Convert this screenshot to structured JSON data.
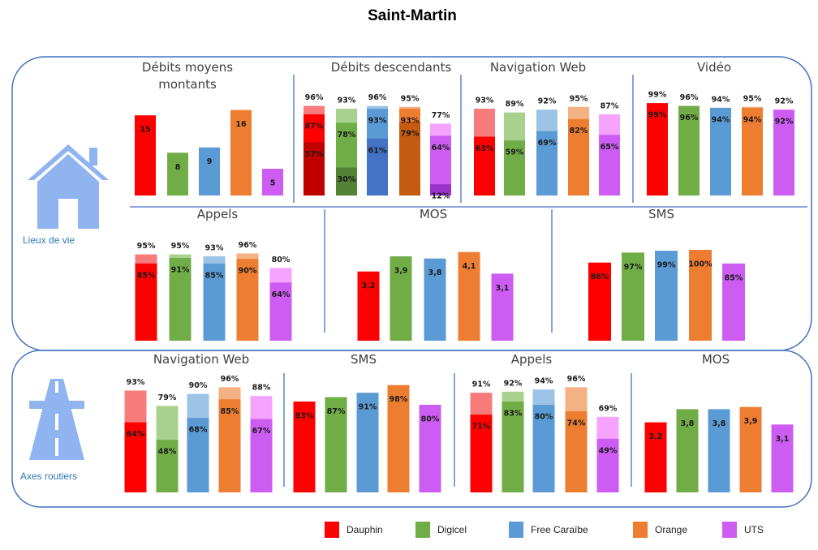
{
  "title": "Saint-Martin",
  "operators": [
    {
      "name": "Dauphin",
      "colors": [
        "#f77b7b",
        "#ff0000",
        "#c00000"
      ]
    },
    {
      "name": "Digicel",
      "colors": [
        "#a9d18e",
        "#70ad47",
        "#548235"
      ]
    },
    {
      "name": "Free Caraïbe",
      "colors": [
        "#9dc3e6",
        "#5b9bd5",
        "#4472c4"
      ]
    },
    {
      "name": "Orange",
      "colors": [
        "#f4b183",
        "#ed7d31",
        "#c55a11"
      ]
    },
    {
      "name": "UTS",
      "colors": [
        "#f5a3ff",
        "#cc5cf2",
        "#9933cc"
      ]
    }
  ],
  "sections": [
    {
      "label": "Lieux de vie",
      "charts": [
        {
          "type": "bar",
          "title": "Débits moyens montants",
          "ylim": [
            0,
            17
          ],
          "values": [
            15,
            8,
            9,
            16,
            5
          ]
        },
        {
          "type": "layered",
          "title": "Débits descendants",
          "ylim": [
            0,
            100
          ],
          "values": [
            [
              96,
              87,
              57
            ],
            [
              93,
              78,
              30
            ],
            [
              96,
              93,
              61
            ],
            [
              95,
              93,
              79
            ],
            [
              77,
              64,
              12
            ]
          ],
          "value_labels": [
            [
              "96%",
              "87%",
              "57%"
            ],
            [
              "93%",
              "78%",
              "30%"
            ],
            [
              "96%",
              "93%",
              "61%"
            ],
            [
              "95%",
              "93%",
              "79%"
            ],
            [
              "77%",
              "64%",
              "12%"
            ]
          ]
        },
        {
          "type": "layered",
          "title": "Navigation Web",
          "ylim": [
            0,
            100
          ],
          "values": [
            [
              93,
              63
            ],
            [
              89,
              59
            ],
            [
              92,
              69
            ],
            [
              95,
              82
            ],
            [
              87,
              65
            ]
          ],
          "value_labels": [
            [
              "93%",
              "63%"
            ],
            [
              "89%",
              "59%"
            ],
            [
              "92%",
              "69%"
            ],
            [
              "95%",
              "82%"
            ],
            [
              "87%",
              "65%"
            ]
          ]
        },
        {
          "type": "layered",
          "title": "Vidéo",
          "ylim": [
            0,
            100
          ],
          "values": [
            [
              99,
              99
            ],
            [
              96,
              96
            ],
            [
              94,
              94
            ],
            [
              95,
              94
            ],
            [
              92,
              92
            ]
          ],
          "value_labels": [
            [
              "99%",
              "99%"
            ],
            [
              "96%",
              "96%"
            ],
            [
              "94%",
              "94%"
            ],
            [
              "95%",
              "94%"
            ],
            [
              "92%",
              "92%"
            ]
          ]
        },
        {
          "type": "layered",
          "title": "Appels",
          "ylim": [
            0,
            100
          ],
          "values": [
            [
              95,
              85
            ],
            [
              95,
              91
            ],
            [
              93,
              85
            ],
            [
              96,
              90
            ],
            [
              80,
              64
            ]
          ],
          "value_labels": [
            [
              "95%",
              "85%"
            ],
            [
              "95%",
              "91%"
            ],
            [
              "93%",
              "85%"
            ],
            [
              "96%",
              "90%"
            ],
            [
              "80%",
              "64%"
            ]
          ]
        },
        {
          "type": "bar",
          "title": "MOS",
          "ylim": [
            0,
            4.2
          ],
          "values": [
            3.2,
            3.9,
            3.8,
            4.1,
            3.1
          ],
          "value_labels": [
            "3,2",
            "3,9",
            "3,8",
            "4,1",
            "3,1"
          ]
        },
        {
          "type": "bar",
          "title": "SMS",
          "ylim": [
            0,
            100
          ],
          "values": [
            86,
            97,
            99,
            100,
            85
          ],
          "value_labels": [
            "86%",
            "97%",
            "99%",
            "100%",
            "85%"
          ]
        }
      ]
    },
    {
      "label": "Axes routiers",
      "charts": [
        {
          "type": "layered",
          "title": "Navigation Web",
          "ylim": [
            0,
            100
          ],
          "values": [
            [
              93,
              64
            ],
            [
              79,
              48
            ],
            [
              90,
              68
            ],
            [
              96,
              85
            ],
            [
              88,
              67
            ]
          ],
          "value_labels": [
            [
              "93%",
              "64%"
            ],
            [
              "79%",
              "48%"
            ],
            [
              "90%",
              "68%"
            ],
            [
              "96%",
              "85%"
            ],
            [
              "88%",
              "67%"
            ]
          ]
        },
        {
          "type": "bar",
          "title": "SMS",
          "ylim": [
            0,
            100
          ],
          "values": [
            83,
            87,
            91,
            98,
            80
          ],
          "value_labels": [
            "83%",
            "87%",
            "91%",
            "98%",
            "80%"
          ]
        },
        {
          "type": "layered",
          "title": "Appels",
          "ylim": [
            0,
            100
          ],
          "values": [
            [
              91,
              71
            ],
            [
              92,
              83
            ],
            [
              94,
              80
            ],
            [
              96,
              74
            ],
            [
              69,
              49
            ]
          ],
          "value_labels": [
            [
              "91%",
              "71%"
            ],
            [
              "92%",
              "83%"
            ],
            [
              "94%",
              "80%"
            ],
            [
              "96%",
              "74%"
            ],
            [
              "69%",
              "49%"
            ]
          ]
        },
        {
          "type": "bar",
          "title": "MOS",
          "ylim": [
            0,
            5
          ],
          "values": [
            3.2,
            3.8,
            3.8,
            3.9,
            3.1
          ],
          "value_labels": [
            "3,2",
            "3,8",
            "3,8",
            "3,9",
            "3,1"
          ]
        }
      ]
    }
  ]
}
